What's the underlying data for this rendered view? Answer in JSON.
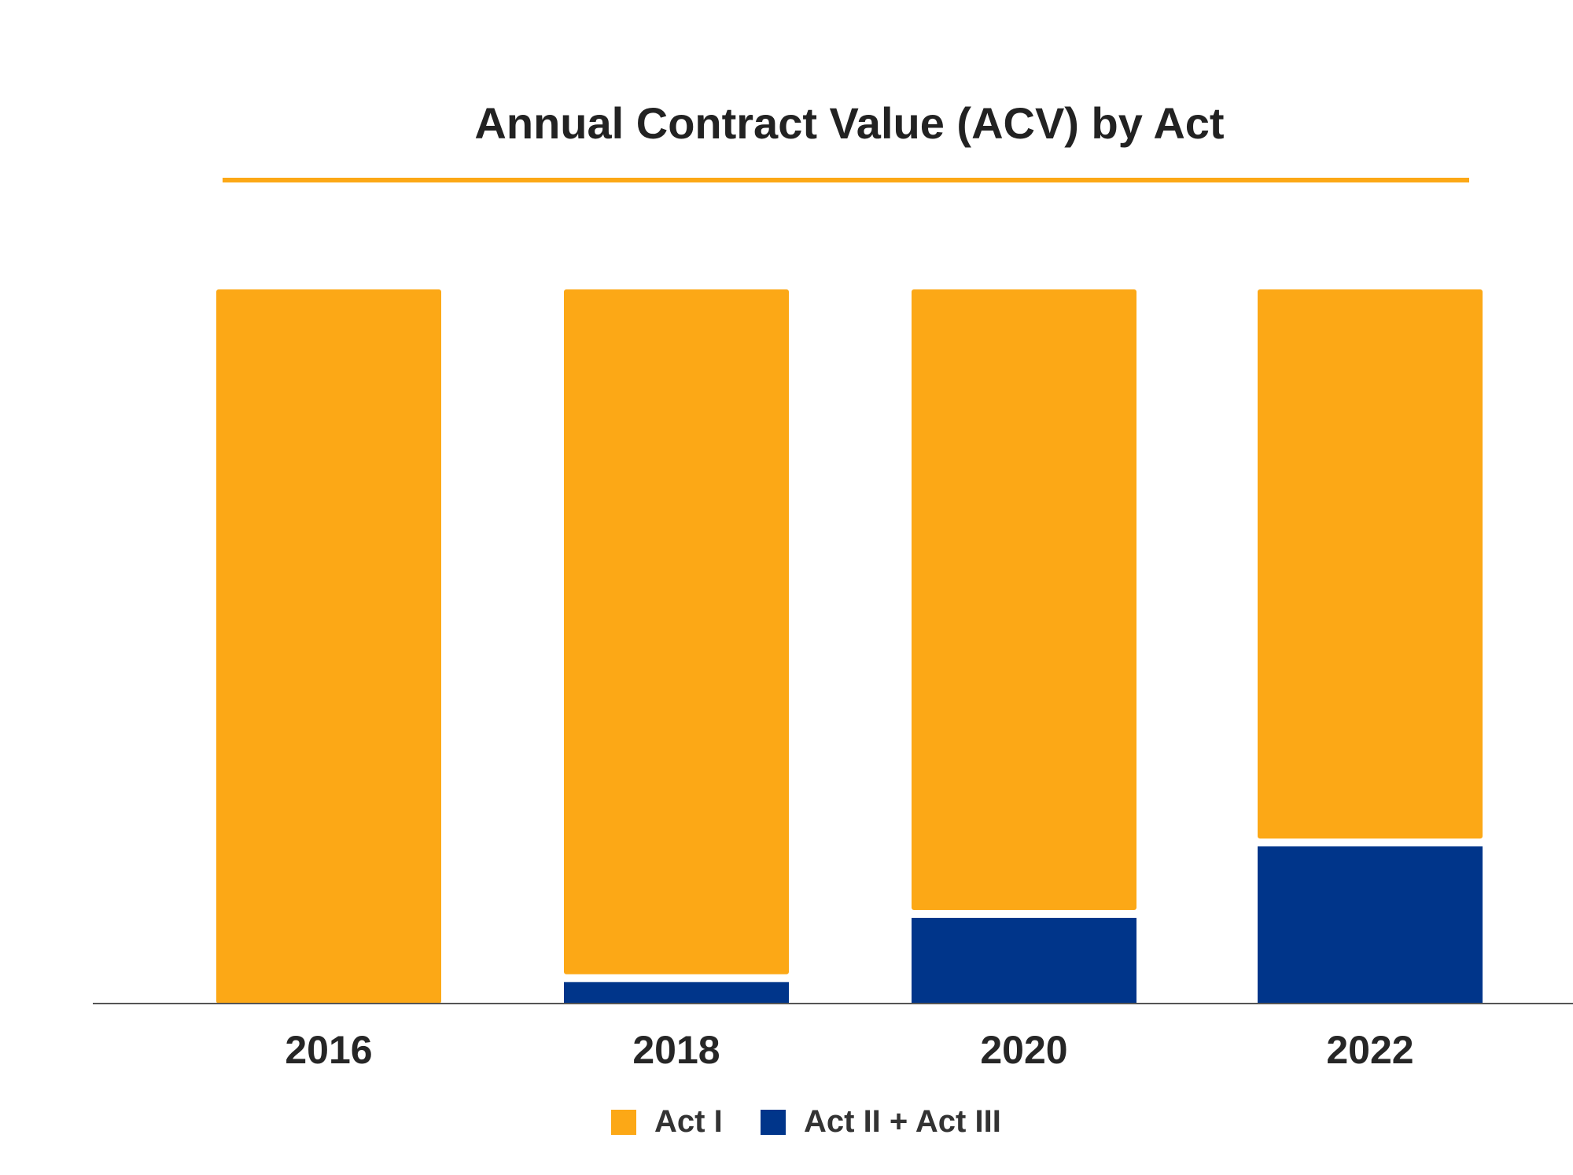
{
  "chart_data": {
    "type": "bar",
    "stacked": true,
    "title": "Annual Contract Value (ACV) by Act",
    "xlabel": "",
    "ylabel": "",
    "categories": [
      "2016",
      "2018",
      "2020",
      "2022"
    ],
    "series": [
      {
        "name": "Act II + Act III",
        "values": [
          0,
          3,
          12,
          22
        ],
        "color": "#00358a"
      },
      {
        "name": "Act I",
        "values": [
          100,
          97,
          88,
          78
        ],
        "color": "#fca816"
      }
    ],
    "ylim": [
      0,
      100
    ],
    "grid": false,
    "legend_position": "bottom-center",
    "accent_rule_color": "#fca816"
  }
}
